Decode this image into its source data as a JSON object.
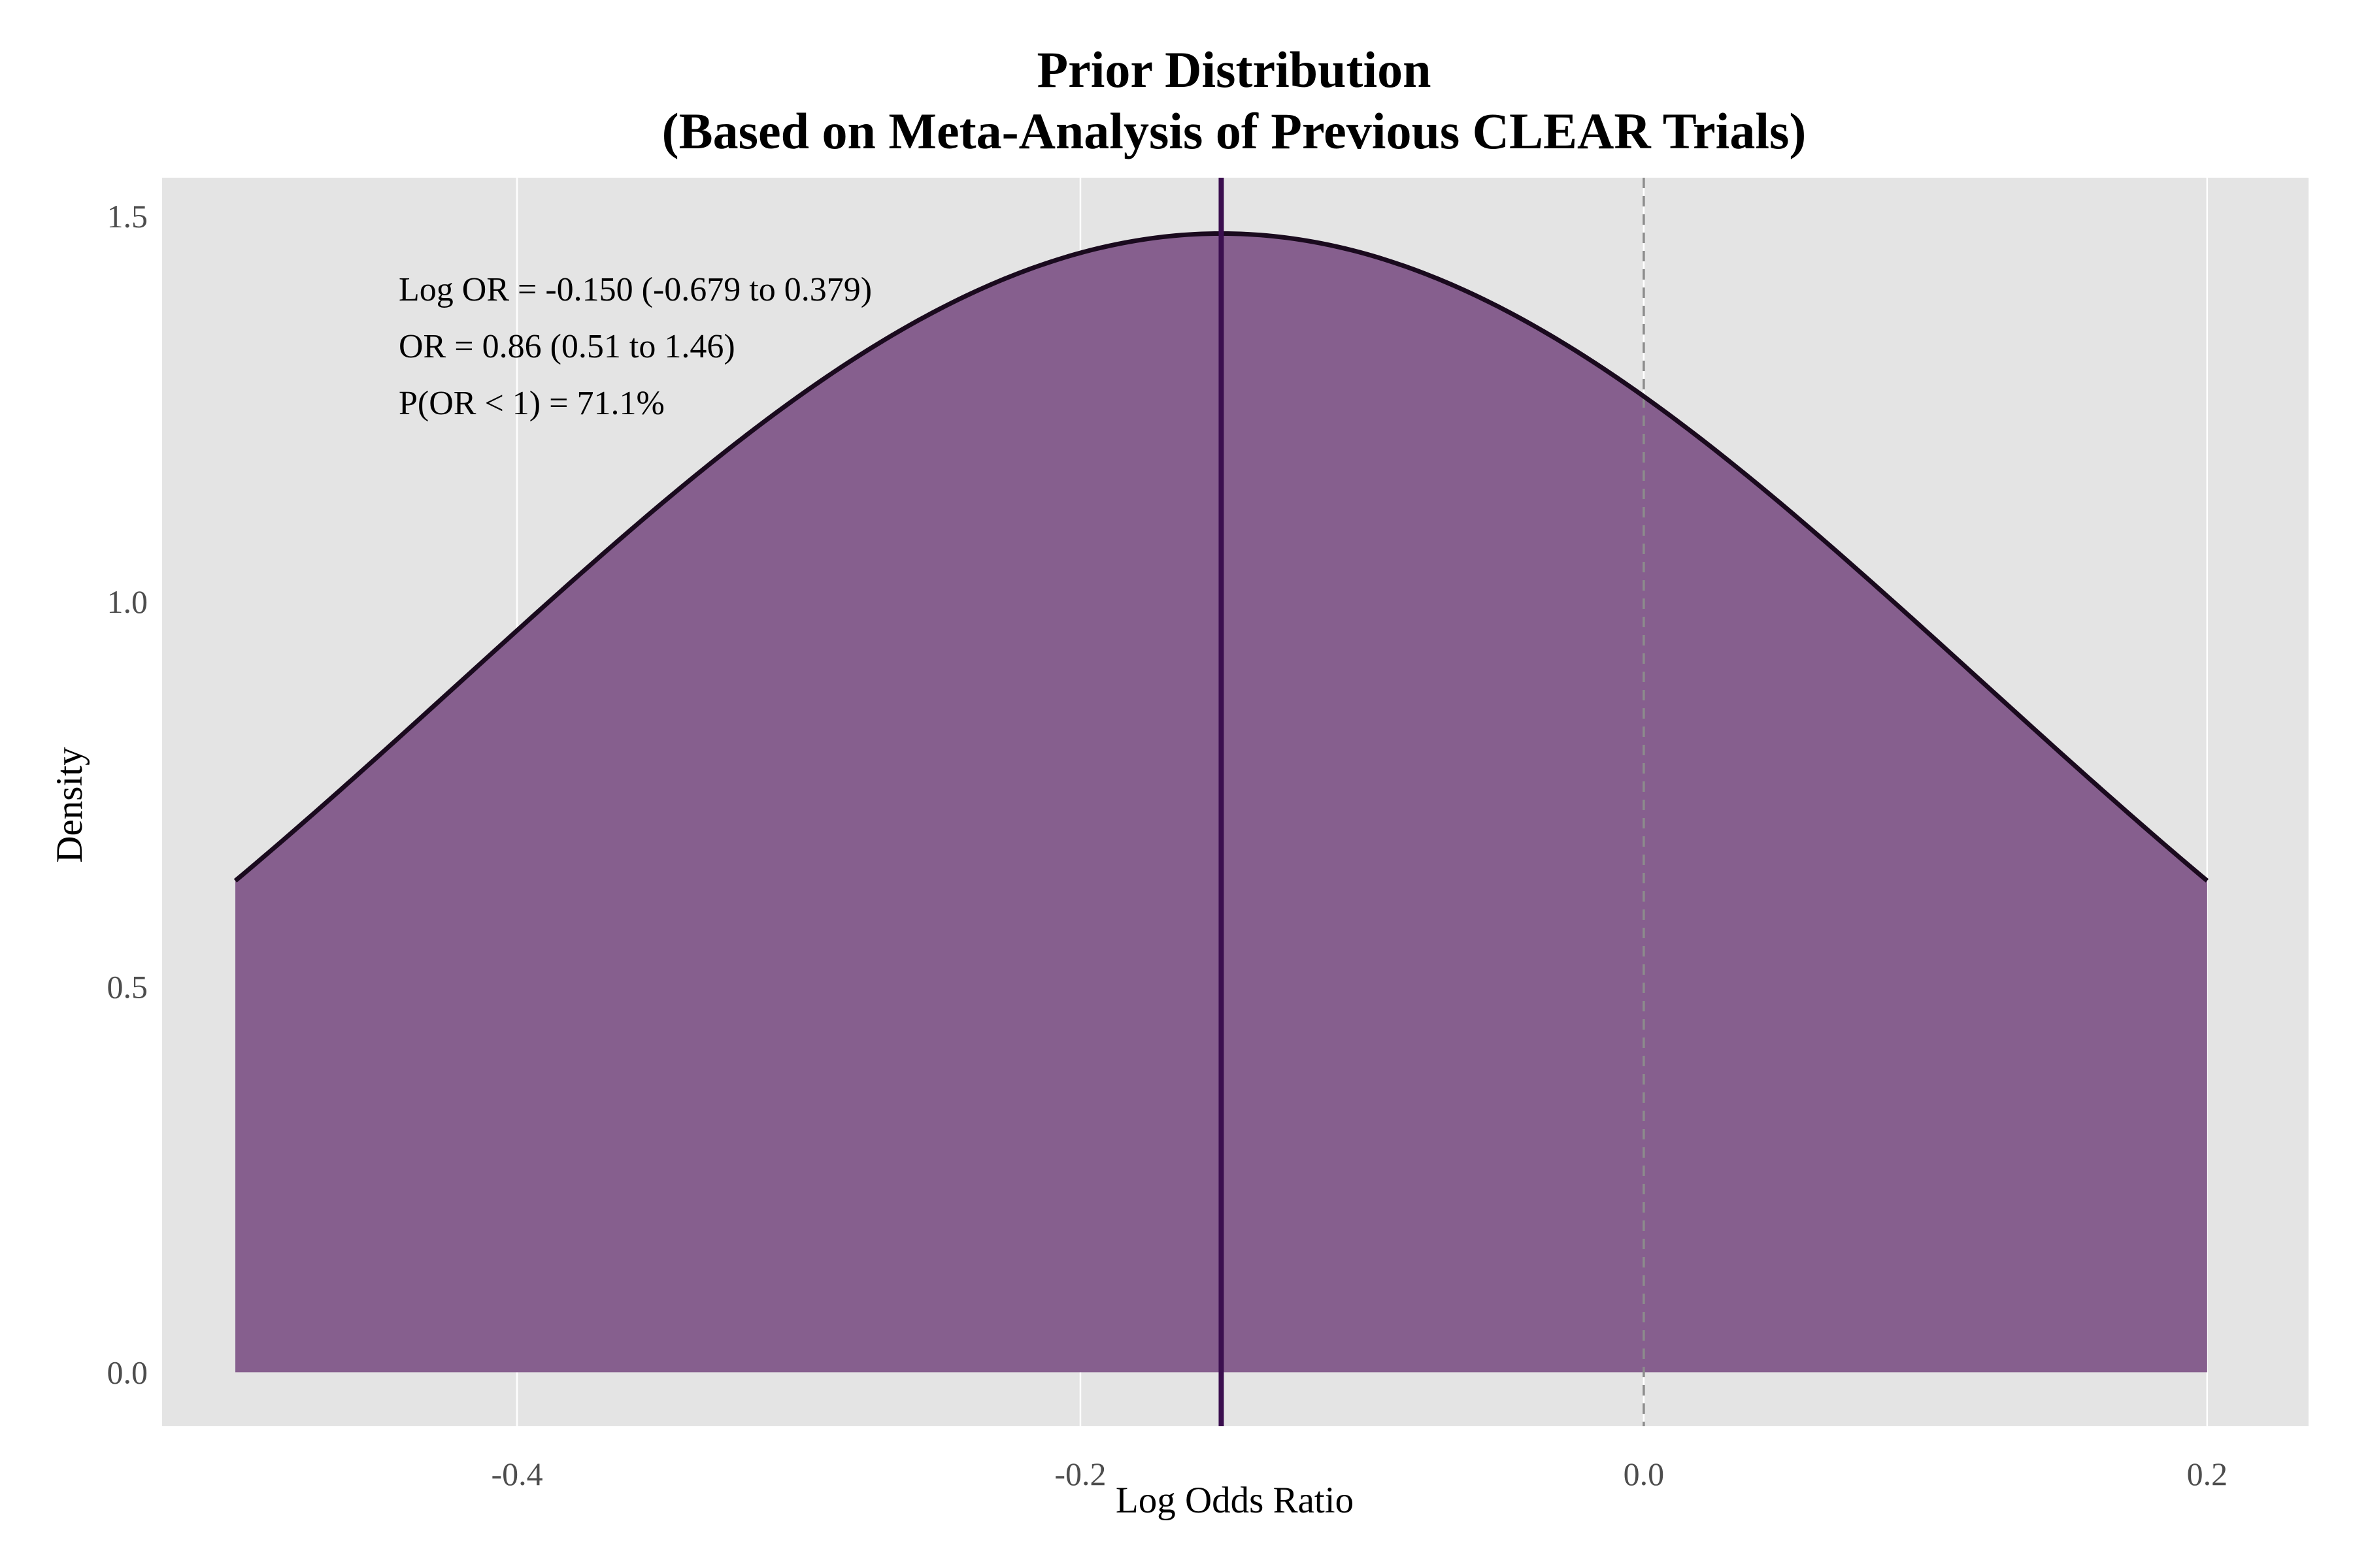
{
  "chart_data": {
    "type": "area",
    "title_line1": "Prior Distribution",
    "title_line2": "(Based on Meta-Analysis of Previous CLEAR Trials)",
    "xlabel": "Log Odds Ratio",
    "ylabel": "Density",
    "xlim": [
      -0.526,
      0.236
    ],
    "ylim": [
      -0.07,
      1.55
    ],
    "x_ticks": [
      -0.4,
      -0.2,
      0.0,
      0.2
    ],
    "x_tick_labels": [
      "-0.4",
      "-0.2",
      "0.0",
      "0.2"
    ],
    "y_ticks": [
      0.0,
      0.5,
      1.0,
      1.5
    ],
    "y_tick_labels": [
      "0.0",
      "0.5",
      "1.0",
      "1.5"
    ],
    "distribution": {
      "family": "normal",
      "mean": -0.15,
      "sd": 0.27,
      "x_range": [
        -0.5,
        0.2
      ]
    },
    "mean_line_x": -0.15,
    "null_line_x": 0.0,
    "annotations": [
      "Log OR = -0.150 (-0.679 to 0.379)",
      "OR = 0.86 (0.51 to 1.46)",
      "P(OR < 1) = 71.1%"
    ],
    "grid": "vertical major lines only",
    "colors": {
      "panel": "#e4e4e4",
      "fill": "#865f8e",
      "curve": "#1a0a1e",
      "mean_line": "#3b0f4f",
      "null_line": "#8c8c8c",
      "grid": "#ffffff"
    }
  }
}
